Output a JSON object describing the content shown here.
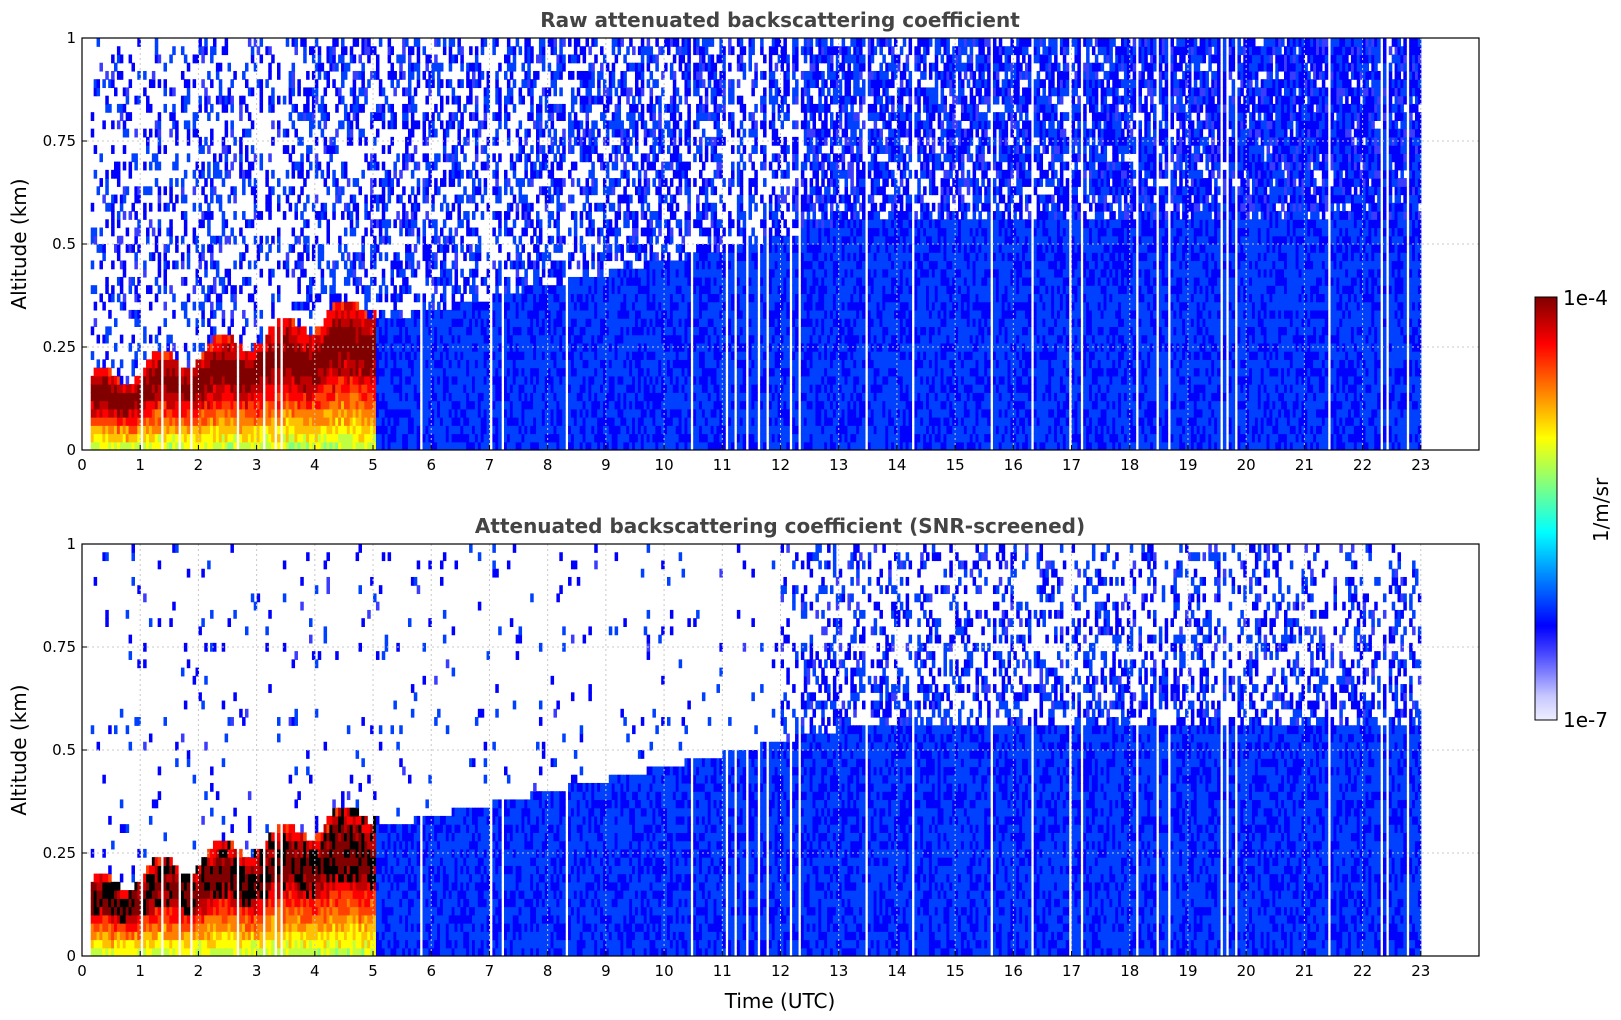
{
  "chart_data": [
    {
      "type": "heatmap",
      "title": "Raw attenuated backscattering coefficient",
      "screened": false,
      "xlabel": "",
      "ylabel": "Altitude (km)",
      "xlim": [
        0,
        24
      ],
      "ylim": [
        0,
        1
      ],
      "xticks": [
        "0",
        "1",
        "2",
        "3",
        "4",
        "5",
        "6",
        "7",
        "8",
        "9",
        "10",
        "11",
        "12",
        "13",
        "14",
        "15",
        "16",
        "17",
        "18",
        "19",
        "20",
        "21",
        "22",
        "23"
      ],
      "yticks": [
        "0",
        "0.25",
        "0.5",
        "0.75",
        "1"
      ],
      "grid": true,
      "data_extent_x": [
        0.15,
        23.0
      ],
      "colorbar": "right"
    },
    {
      "type": "heatmap",
      "title": "Attenuated backscattering coefficient (SNR-screened)",
      "screened": true,
      "xlabel": "Time (UTC)",
      "ylabel": "Altitude (km)",
      "xlim": [
        0,
        24
      ],
      "ylim": [
        0,
        1
      ],
      "xticks": [
        "0",
        "1",
        "2",
        "3",
        "4",
        "5",
        "6",
        "7",
        "8",
        "9",
        "10",
        "11",
        "12",
        "13",
        "14",
        "15",
        "16",
        "17",
        "18",
        "19",
        "20",
        "21",
        "22",
        "23"
      ],
      "yticks": [
        "0",
        "0.25",
        "0.5",
        "0.75",
        "1"
      ],
      "grid": true,
      "data_extent_x": [
        0.15,
        23.0
      ],
      "colorbar": "right"
    }
  ],
  "colorbar": {
    "label": "1/m/sr",
    "max_label": "1e-4",
    "min_label": "1e-7",
    "scale": "log",
    "colors": [
      "#eeeeff",
      "#c8c8ff",
      "#8080ff",
      "#3c3cff",
      "#0000ff",
      "#0040ff",
      "#0080ff",
      "#00c0ff",
      "#00ffff",
      "#40ffc0",
      "#80ff80",
      "#c0ff40",
      "#ffff00",
      "#ffc000",
      "#ff8000",
      "#ff4000",
      "#ff0000",
      "#c00000",
      "#800000"
    ]
  }
}
